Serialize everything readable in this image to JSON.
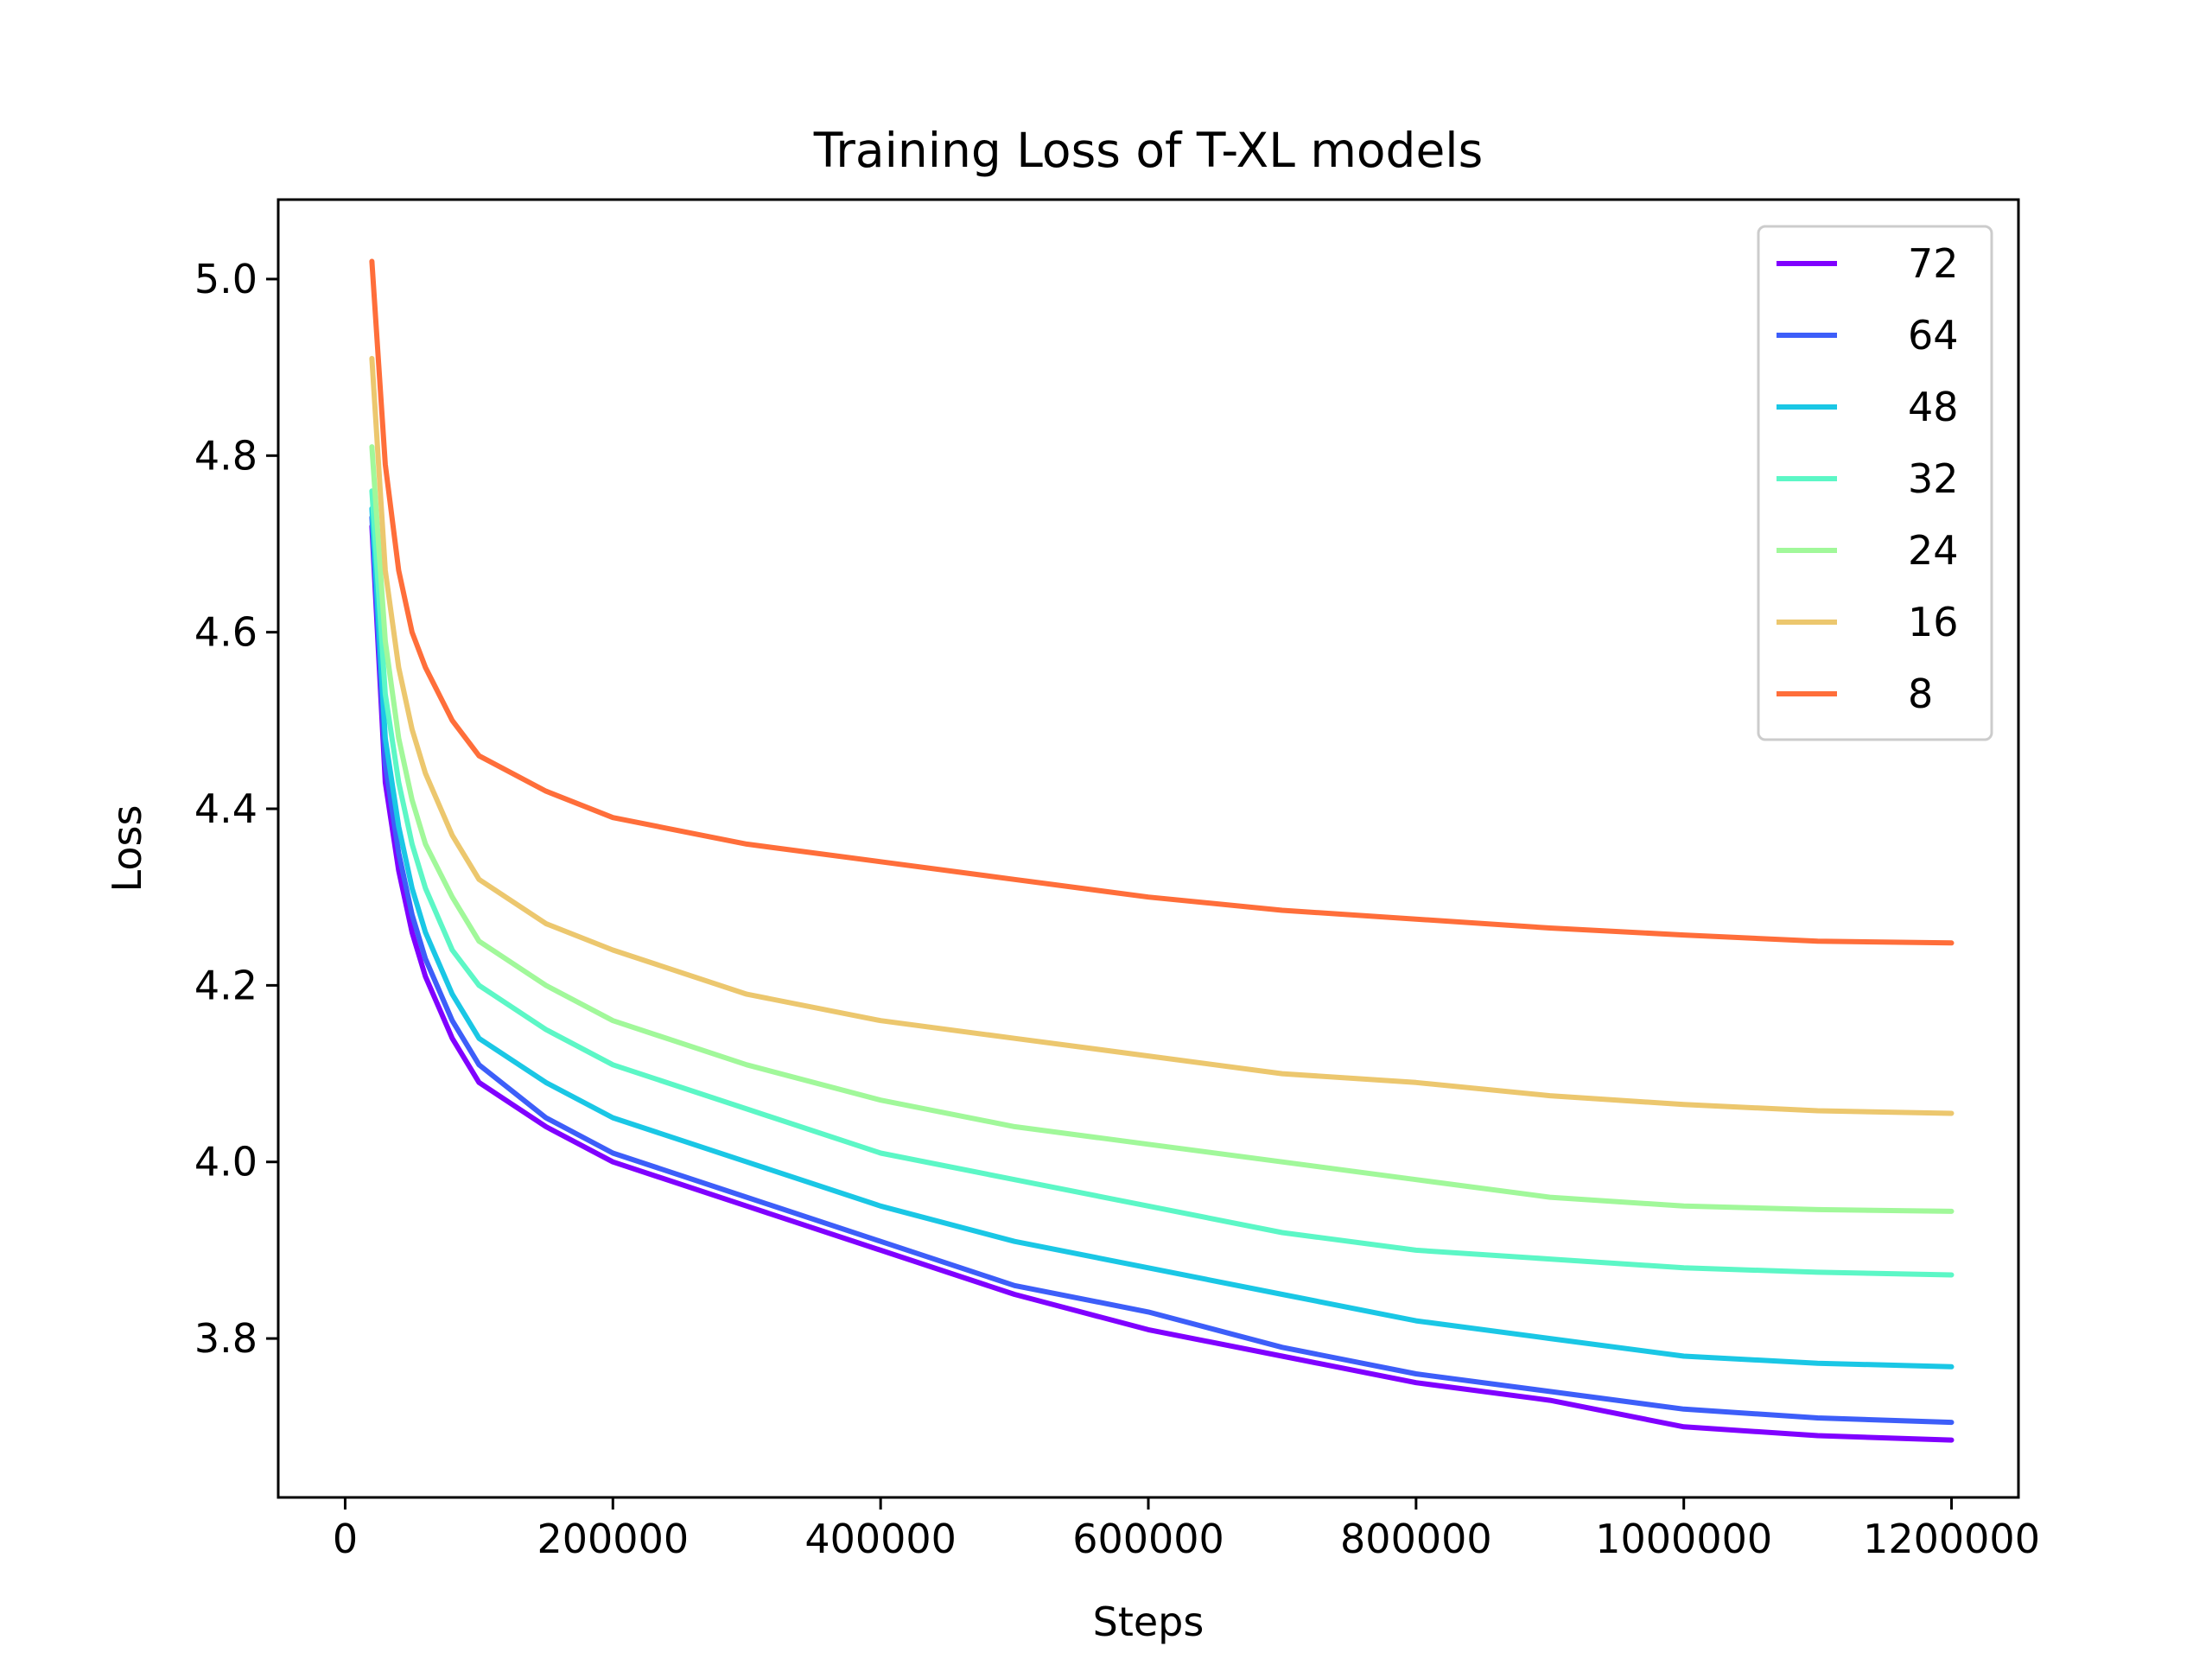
{
  "chart_data": {
    "type": "line",
    "title": "Training Loss of T-XL models",
    "xlabel": "Steps",
    "ylabel": "Loss",
    "xlim": [
      -50000,
      1250000
    ],
    "ylim": [
      3.62,
      5.09
    ],
    "xticks": [
      0,
      200000,
      400000,
      600000,
      800000,
      1000000,
      1200000
    ],
    "xtick_labels": [
      "0",
      "200000",
      "400000",
      "600000",
      "800000",
      "1000000",
      "1200000"
    ],
    "yticks": [
      3.8,
      4.0,
      4.2,
      4.4,
      4.6,
      4.8,
      5.0
    ],
    "ytick_labels": [
      "3.8",
      "4.0",
      "4.2",
      "4.4",
      "4.6",
      "4.8",
      "5.0"
    ],
    "grid": false,
    "legend_position": "top-right",
    "x": [
      20000,
      30000,
      40000,
      50000,
      60000,
      80000,
      100000,
      150000,
      200000,
      300000,
      400000,
      500000,
      600000,
      700000,
      800000,
      900000,
      1000000,
      1100000,
      1200000
    ],
    "series": [
      {
        "name": "72",
        "color": "#8000ff",
        "values": [
          4.72,
          4.43,
          4.33,
          4.26,
          4.21,
          4.14,
          4.09,
          4.04,
          4.0,
          3.95,
          3.9,
          3.85,
          3.81,
          3.78,
          3.75,
          3.73,
          3.7,
          3.69,
          3.685
        ]
      },
      {
        "name": "64",
        "color": "#3d5ef9",
        "values": [
          4.73,
          4.45,
          4.35,
          4.28,
          4.23,
          4.16,
          4.11,
          4.05,
          4.01,
          3.96,
          3.91,
          3.86,
          3.83,
          3.79,
          3.76,
          3.74,
          3.72,
          3.71,
          3.705
        ]
      },
      {
        "name": "48",
        "color": "#1ac7e5",
        "values": [
          4.74,
          4.48,
          4.38,
          4.31,
          4.26,
          4.19,
          4.14,
          4.09,
          4.05,
          4.0,
          3.95,
          3.91,
          3.88,
          3.85,
          3.82,
          3.8,
          3.78,
          3.772,
          3.768
        ]
      },
      {
        "name": "32",
        "color": "#5cf7c6",
        "values": [
          4.76,
          4.53,
          4.43,
          4.36,
          4.31,
          4.24,
          4.2,
          4.15,
          4.11,
          4.06,
          4.01,
          3.98,
          3.95,
          3.92,
          3.9,
          3.89,
          3.88,
          3.875,
          3.872
        ]
      },
      {
        "name": "24",
        "color": "#a1f89a",
        "values": [
          4.81,
          4.59,
          4.48,
          4.41,
          4.36,
          4.3,
          4.25,
          4.2,
          4.16,
          4.11,
          4.07,
          4.04,
          4.02,
          4.0,
          3.98,
          3.96,
          3.95,
          3.946,
          3.944
        ]
      },
      {
        "name": "16",
        "color": "#ecc76e",
        "values": [
          4.91,
          4.67,
          4.56,
          4.49,
          4.44,
          4.37,
          4.32,
          4.27,
          4.24,
          4.19,
          4.16,
          4.14,
          4.12,
          4.1,
          4.09,
          4.075,
          4.065,
          4.058,
          4.055
        ]
      },
      {
        "name": "8",
        "color": "#ff6e3a",
        "values": [
          5.02,
          4.79,
          4.67,
          4.6,
          4.56,
          4.5,
          4.46,
          4.42,
          4.39,
          4.36,
          4.34,
          4.32,
          4.3,
          4.285,
          4.275,
          4.265,
          4.257,
          4.25,
          4.248
        ]
      }
    ]
  }
}
